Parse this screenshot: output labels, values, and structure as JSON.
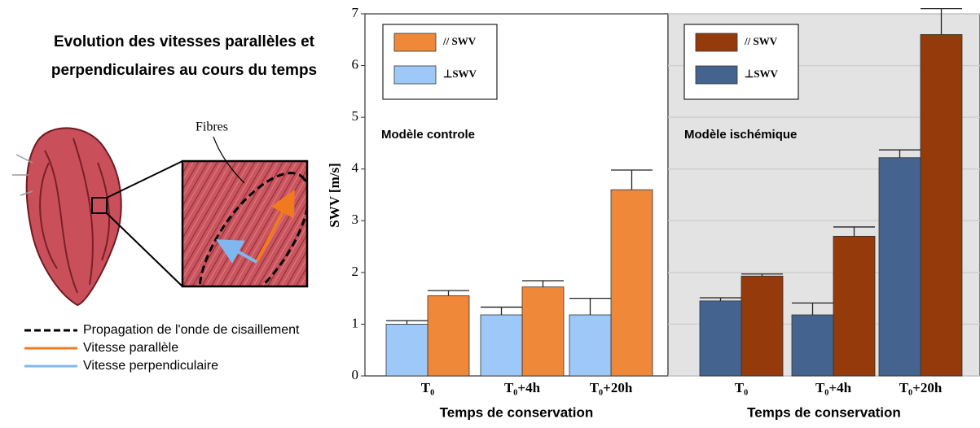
{
  "illustration": {
    "title": [
      "Evolution des vitesses parallèles et",
      "perpendiculaires au cours du temps"
    ],
    "fibres_label": "Fibres",
    "legend": [
      {
        "label": "Propagation de l'onde de cisaillement",
        "color": "#000000"
      },
      {
        "label": "Vitesse parallèle",
        "color": "#f07a1e"
      },
      {
        "label": "Vitesse perpendiculaire",
        "color": "#7fb8ef"
      }
    ]
  },
  "chart_data": [
    {
      "type": "bar",
      "ylabel": "SWV [m/s]",
      "annotation": "Modèle controle",
      "xlabel": "Temps de conservation",
      "categories": [
        "T₀",
        "T₀+4h",
        "T₀+20h"
      ],
      "series": [
        {
          "name": "// SWV",
          "color": "#f0883a",
          "values": [
            1.55,
            1.72,
            3.6
          ],
          "errors": [
            0.1,
            0.12,
            0.38
          ]
        },
        {
          "name": "⊥SWV",
          "color": "#9ec8f7",
          "values": [
            1.0,
            1.18,
            1.18
          ],
          "errors": [
            0.07,
            0.15,
            0.32
          ]
        }
      ],
      "ylim": [
        0,
        7
      ],
      "yticks": [
        0,
        1,
        2,
        3,
        4,
        5,
        6,
        7
      ],
      "grid": false,
      "background": "#ffffff"
    },
    {
      "type": "bar",
      "annotation": "Modèle ischémique",
      "xlabel": "Temps de conservation",
      "categories": [
        "T₀",
        "T₀+4h",
        "T₀+20h"
      ],
      "series": [
        {
          "name": "// SWV",
          "color": "#953a0a",
          "values": [
            1.93,
            2.7,
            6.6
          ],
          "errors": [
            0.04,
            0.18,
            0.5
          ]
        },
        {
          "name": "⊥SWV",
          "color": "#44638f",
          "values": [
            1.45,
            1.18,
            4.22
          ],
          "errors": [
            0.06,
            0.23,
            0.15
          ]
        }
      ],
      "ylim": [
        0,
        7
      ],
      "yticks": [
        0,
        1,
        2,
        3,
        4,
        5,
        6,
        7
      ],
      "grid": true,
      "background": "#e3e3e3"
    }
  ]
}
